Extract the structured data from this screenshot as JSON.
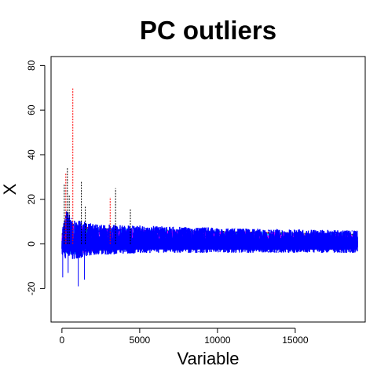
{
  "chart_data": {
    "type": "line",
    "title": "PC outliers",
    "xlabel": "Variable",
    "ylabel": "X",
    "xlim": [
      -700,
      19500
    ],
    "ylim": [
      -35,
      84
    ],
    "x_ticks": [
      0,
      5000,
      10000,
      15000
    ],
    "x_tick_labels": [
      "0",
      "5000",
      "10000",
      "15000"
    ],
    "y_ticks": [
      -20,
      0,
      20,
      40,
      60,
      80
    ],
    "y_tick_labels": [
      "-20",
      "0",
      "20",
      "40",
      "60",
      "80"
    ],
    "grid": false,
    "legend": "none",
    "n_variables": 19000,
    "series_colors": [
      "#000000",
      "#ff0000",
      "#00cc00",
      "#0000ff",
      "#00ffff",
      "#ff00ff"
    ],
    "peaks": [
      {
        "x": 150,
        "y": 27
      },
      {
        "x": 250,
        "y": 32
      },
      {
        "x": 350,
        "y": 34
      },
      {
        "x": 470,
        "y": 22
      },
      {
        "x": 700,
        "y": 70
      },
      {
        "x": 1250,
        "y": 28
      },
      {
        "x": 1500,
        "y": 17
      },
      {
        "x": 3100,
        "y": 21
      },
      {
        "x": 3450,
        "y": 25
      },
      {
        "x": 4400,
        "y": 16
      }
    ],
    "troughs": [
      {
        "x": 50,
        "y": -15
      },
      {
        "x": 400,
        "y": -13
      },
      {
        "x": 1050,
        "y": -19
      },
      {
        "x": 1450,
        "y": -16
      }
    ],
    "envelope_start": [
      {
        "x": 0,
        "lo": -5,
        "hi": 6
      },
      {
        "x": 300,
        "lo": -7,
        "hi": 15
      },
      {
        "x": 800,
        "lo": -7,
        "hi": 11
      },
      {
        "x": 2000,
        "lo": -5,
        "hi": 9
      },
      {
        "x": 6000,
        "lo": -4,
        "hi": 8
      },
      {
        "x": 12000,
        "lo": -4,
        "hi": 7
      },
      {
        "x": 19000,
        "lo": -4,
        "hi": 6
      }
    ]
  }
}
